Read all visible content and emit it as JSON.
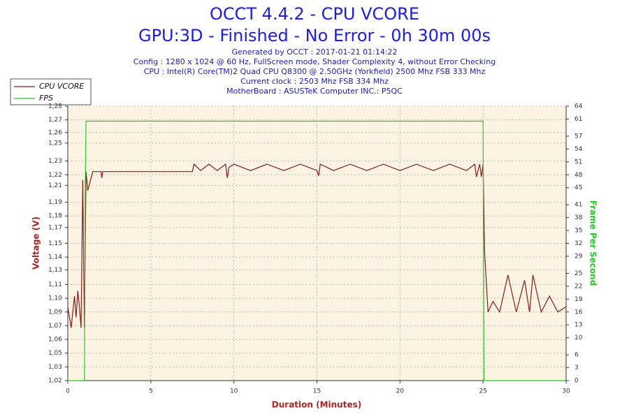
{
  "chart_data": {
    "type": "line",
    "title": "OCCT 4.4.2 - CPU VCORE",
    "subtitle": "GPU:3D - Finished - No Error - 0h 30m 00s",
    "info": [
      "Generated by OCCT : 2017-01-21 01:14:22",
      "Config : 1280 x 1024 @ 60 Hz, FullScreen mode, Shader Complexity 4, without Error Checking",
      "CPU : Intel(R) Core(TM)2 Quad CPU Q8300 @ 2.50GHz (Yorkfield) 2500 Mhz FSB 333 Mhz",
      "Current clock : 2503 Mhz FSB 334 Mhz",
      "MotherBoard : ASUSTeK Computer INC.: P5QC"
    ],
    "xlabel": "Duration (Minutes)",
    "ylabel": "Voltage (V)",
    "y2label": "Frame Per Second",
    "xlim": [
      0,
      30
    ],
    "xticks": [
      0,
      5,
      10,
      15,
      20,
      25,
      30
    ],
    "ylim": [
      1.02,
      1.28
    ],
    "yticks": [
      {
        "value": 1.02,
        "label": "1,02"
      },
      {
        "value": 1.033,
        "label": "1,03"
      },
      {
        "value": 1.046,
        "label": "1,05"
      },
      {
        "value": 1.059,
        "label": "1,06"
      },
      {
        "value": 1.072,
        "label": "1,07"
      },
      {
        "value": 1.085,
        "label": "1,09"
      },
      {
        "value": 1.098,
        "label": "1,10"
      },
      {
        "value": 1.111,
        "label": "1,11"
      },
      {
        "value": 1.125,
        "label": "1,13"
      },
      {
        "value": 1.137,
        "label": "1,14"
      },
      {
        "value": 1.15,
        "label": "1,15"
      },
      {
        "value": 1.165,
        "label": "1,17"
      },
      {
        "value": 1.176,
        "label": "1,18"
      },
      {
        "value": 1.189,
        "label": "1,19"
      },
      {
        "value": 1.205,
        "label": "1,21"
      },
      {
        "value": 1.215,
        "label": "1,22"
      },
      {
        "value": 1.228,
        "label": "1,23"
      },
      {
        "value": 1.245,
        "label": "1,25"
      },
      {
        "value": 1.255,
        "label": "1,26"
      },
      {
        "value": 1.267,
        "label": "1,27"
      },
      {
        "value": 1.28,
        "label": "1,28"
      }
    ],
    "y2lim": [
      0,
      64
    ],
    "y2ticks": [
      0,
      3,
      6,
      10,
      13,
      16,
      19,
      22,
      25,
      29,
      32,
      35,
      38,
      41,
      45,
      48,
      51,
      54,
      57,
      61,
      64
    ],
    "grid": true,
    "series": [
      {
        "name": "CPU VCORE",
        "color": "#8b1a1a",
        "x": [
          0,
          0.2,
          0.4,
          0.5,
          0.6,
          0.7,
          0.8,
          0.9,
          1.0,
          1.1,
          1.2,
          1.5,
          2.0,
          2.05,
          2.1,
          4,
          6,
          7.5,
          7.6,
          8,
          8.5,
          9,
          9.5,
          9.6,
          9.7,
          10,
          11,
          12,
          13,
          14,
          15,
          15.1,
          15.2,
          16,
          17,
          18,
          19,
          20,
          21,
          22,
          23,
          24,
          24.5,
          24.6,
          24.8,
          24.9,
          25,
          25.1,
          25.3,
          25.6,
          26,
          26.5,
          27,
          27.5,
          27.8,
          28,
          28.5,
          29,
          29.5,
          30
        ],
        "values": [
          1.09,
          1.07,
          1.1,
          1.08,
          1.105,
          1.09,
          1.07,
          1.21,
          1.07,
          1.218,
          1.2,
          1.218,
          1.218,
          1.212,
          1.218,
          1.218,
          1.218,
          1.218,
          1.225,
          1.219,
          1.225,
          1.219,
          1.225,
          1.212,
          1.222,
          1.225,
          1.219,
          1.225,
          1.219,
          1.225,
          1.219,
          1.214,
          1.225,
          1.219,
          1.225,
          1.219,
          1.225,
          1.219,
          1.225,
          1.219,
          1.225,
          1.219,
          1.225,
          1.213,
          1.225,
          1.213,
          1.225,
          1.14,
          1.085,
          1.095,
          1.085,
          1.12,
          1.085,
          1.115,
          1.085,
          1.12,
          1.085,
          1.1,
          1.085,
          1.09
        ]
      },
      {
        "name": "FPS",
        "color": "#22cc22",
        "axis": "y2",
        "x": [
          0,
          1.0,
          1.05,
          1.1,
          1.2,
          25,
          25.05,
          30
        ],
        "values": [
          0,
          0,
          45,
          60.5,
          60.5,
          60.5,
          0,
          0
        ]
      }
    ]
  }
}
